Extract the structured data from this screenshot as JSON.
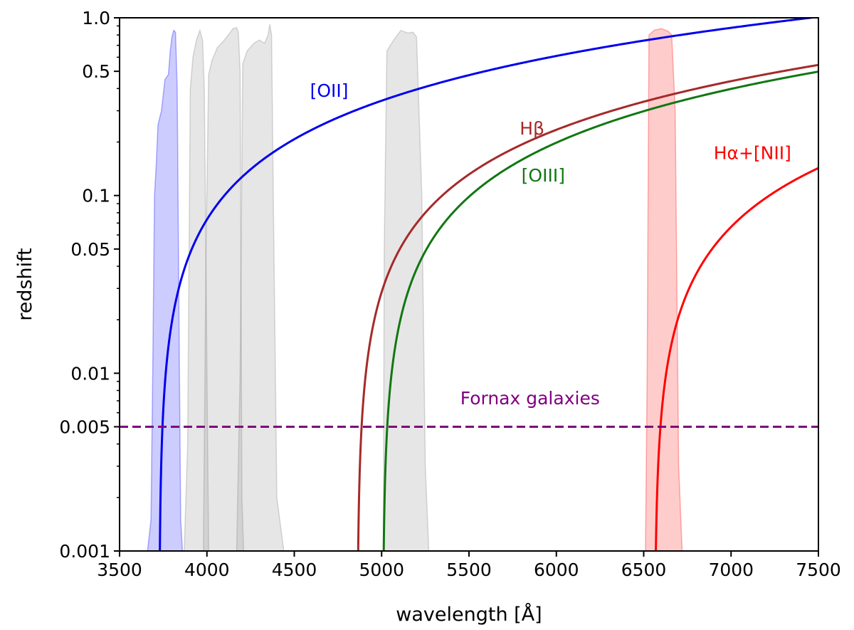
{
  "chart_data": {
    "type": "line",
    "xlabel": "wavelength [Å]",
    "ylabel": "redshift",
    "xlim": [
      3500,
      7500
    ],
    "ylim": [
      0.001,
      1.0
    ],
    "yscale": "log",
    "grid": false,
    "x_ticks": [
      3500,
      4000,
      4500,
      5000,
      5500,
      6000,
      6500,
      7000,
      7500
    ],
    "x_tick_labels": [
      "3500",
      "4000",
      "4500",
      "5000",
      "5500",
      "6000",
      "6500",
      "7000",
      "7500"
    ],
    "y_ticks": [
      0.001,
      0.005,
      0.01,
      0.05,
      0.1,
      0.5,
      1.0
    ],
    "y_tick_labels": [
      "0.001",
      "0.005",
      "0.01",
      "0.05",
      "0.1",
      "0.5",
      "1.0"
    ],
    "series": [
      {
        "label": "[OII]",
        "rest_wavelength": 3727,
        "color": "#0000ee"
      },
      {
        "label": "Hβ",
        "rest_wavelength": 4861,
        "color": "#a52a2a"
      },
      {
        "label": "[OIII]",
        "rest_wavelength": 5007,
        "color": "#117711"
      },
      {
        "label": "Hα+[NII]",
        "rest_wavelength": 6563,
        "color": "#ff0000"
      }
    ],
    "reference_line": {
      "label": "Fornax galaxies",
      "y": 0.005,
      "color": "#800080",
      "style": "dashed"
    },
    "filter_bands": [
      {
        "color": "#0000ff",
        "points": [
          [
            3660,
            0.001
          ],
          [
            3680,
            0.0015
          ],
          [
            3690,
            0.01
          ],
          [
            3700,
            0.1
          ],
          [
            3710,
            0.15
          ],
          [
            3720,
            0.25
          ],
          [
            3740,
            0.3
          ],
          [
            3760,
            0.45
          ],
          [
            3780,
            0.48
          ],
          [
            3790,
            0.65
          ],
          [
            3800,
            0.78
          ],
          [
            3810,
            0.85
          ],
          [
            3820,
            0.83
          ],
          [
            3830,
            0.4
          ],
          [
            3840,
            0.02
          ],
          [
            3850,
            0.0015
          ],
          [
            3860,
            0.001
          ]
        ]
      },
      {
        "color": "#808080",
        "points": [
          [
            3870,
            0.001
          ],
          [
            3890,
            0.004
          ],
          [
            3905,
            0.4
          ],
          [
            3920,
            0.6
          ],
          [
            3940,
            0.75
          ],
          [
            3960,
            0.85
          ],
          [
            3975,
            0.75
          ],
          [
            3985,
            0.4
          ],
          [
            4000,
            0.01
          ],
          [
            4010,
            0.001
          ]
        ]
      },
      {
        "color": "#808080",
        "points": [
          [
            3980,
            0.001
          ],
          [
            3995,
            0.05
          ],
          [
            4010,
            0.48
          ],
          [
            4030,
            0.58
          ],
          [
            4060,
            0.68
          ],
          [
            4100,
            0.75
          ],
          [
            4130,
            0.82
          ],
          [
            4150,
            0.87
          ],
          [
            4170,
            0.88
          ],
          [
            4180,
            0.83
          ],
          [
            4190,
            0.5
          ],
          [
            4200,
            0.002
          ],
          [
            4210,
            0.001
          ]
        ]
      },
      {
        "color": "#808080",
        "points": [
          [
            4170,
            0.001
          ],
          [
            4190,
            0.01
          ],
          [
            4205,
            0.55
          ],
          [
            4230,
            0.65
          ],
          [
            4270,
            0.72
          ],
          [
            4300,
            0.75
          ],
          [
            4330,
            0.72
          ],
          [
            4350,
            0.8
          ],
          [
            4360,
            0.92
          ],
          [
            4370,
            0.8
          ],
          [
            4380,
            0.1
          ],
          [
            4400,
            0.002
          ],
          [
            4440,
            0.001
          ]
        ]
      },
      {
        "color": "#808080",
        "points": [
          [
            5010,
            0.001
          ],
          [
            5015,
            0.05
          ],
          [
            5030,
            0.65
          ],
          [
            5050,
            0.7
          ],
          [
            5070,
            0.75
          ],
          [
            5090,
            0.8
          ],
          [
            5110,
            0.85
          ],
          [
            5150,
            0.82
          ],
          [
            5180,
            0.83
          ],
          [
            5200,
            0.78
          ],
          [
            5230,
            0.1
          ],
          [
            5250,
            0.003
          ],
          [
            5270,
            0.001
          ]
        ]
      },
      {
        "color": "#ff0000",
        "points": [
          [
            6510,
            0.001
          ],
          [
            6520,
            0.01
          ],
          [
            6530,
            0.8
          ],
          [
            6560,
            0.85
          ],
          [
            6600,
            0.87
          ],
          [
            6640,
            0.84
          ],
          [
            6660,
            0.8
          ],
          [
            6680,
            0.3
          ],
          [
            6700,
            0.003
          ],
          [
            6720,
            0.001
          ]
        ]
      }
    ],
    "annotations": [
      {
        "text": "[OII]",
        "x": 4590,
        "y": 0.36,
        "color": "#0000ee"
      },
      {
        "text": "Hβ",
        "x": 5790,
        "y": 0.22,
        "color": "#a52a2a"
      },
      {
        "text": "[OIII]",
        "x": 5800,
        "y": 0.12,
        "color": "#117711"
      },
      {
        "text": "Hα+[NII]",
        "x": 6900,
        "y": 0.16,
        "color": "#ff0000"
      },
      {
        "text": "Fornax galaxies",
        "x": 5450,
        "y": 0.0067,
        "color": "#800080"
      }
    ]
  }
}
